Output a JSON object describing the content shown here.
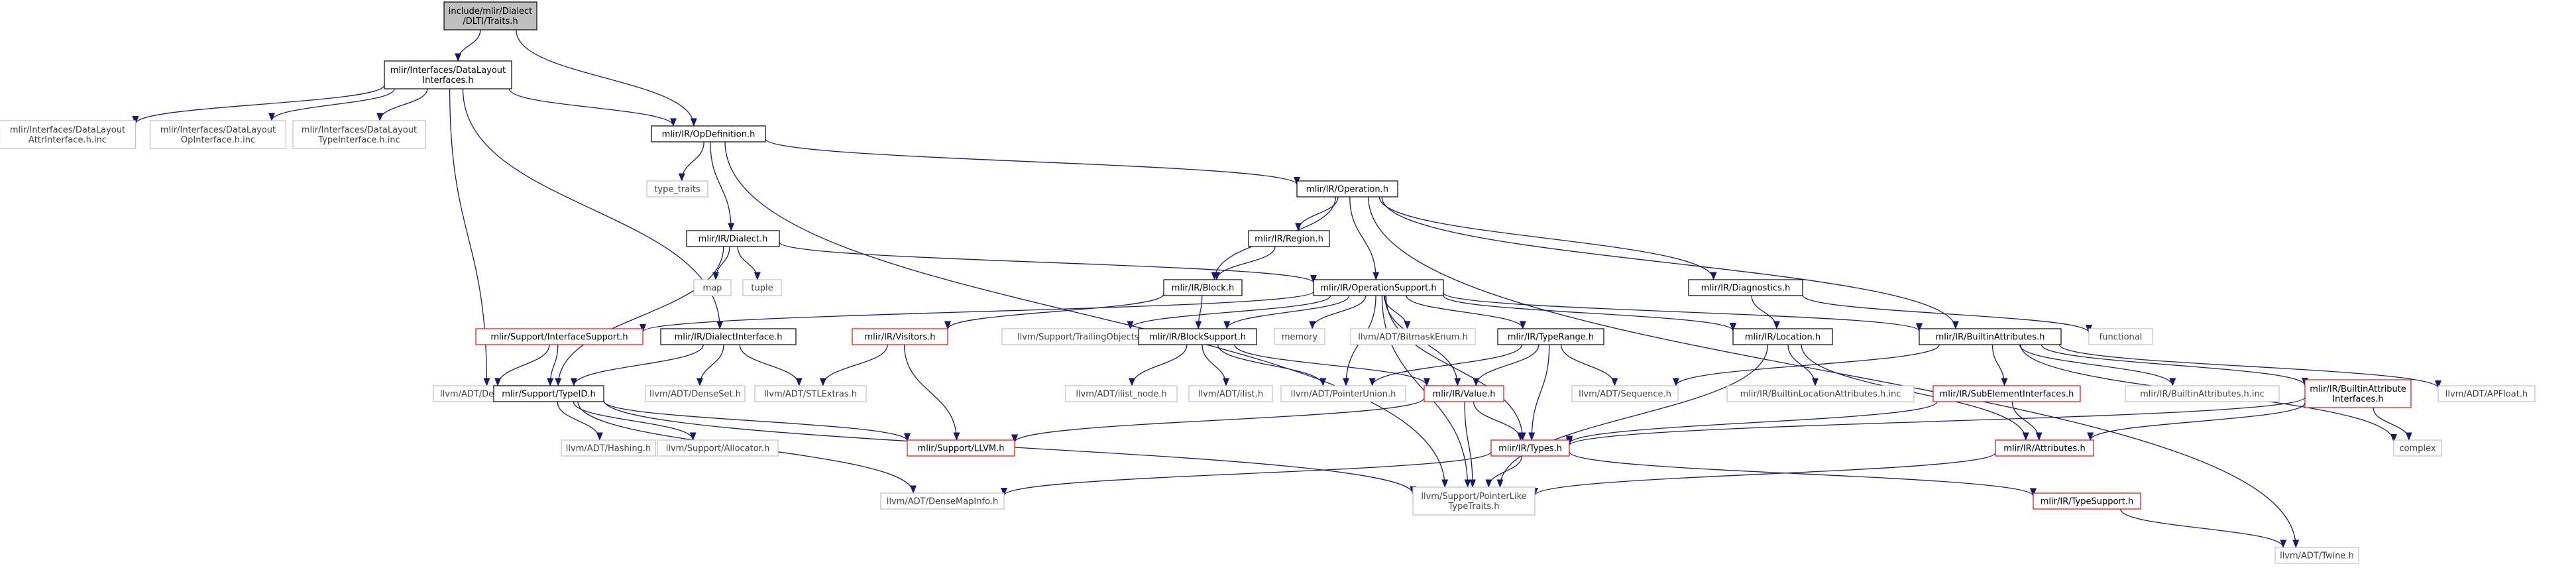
{
  "colors": {
    "background": "#ffffff",
    "edge": "#191970",
    "root_fill": "#bfbfbf",
    "border_normal": "#000000",
    "border_red": "#ff0000",
    "border_gray": "#bfbfbf",
    "text": "#000000",
    "text_gray": "#3f3f3f"
  },
  "nodes": [
    {
      "id": "n0",
      "lines": [
        "include/mlir/Dialect",
        "/DLTI/Traits.h"
      ],
      "style": "root"
    },
    {
      "id": "n1",
      "lines": [
        "mlir/Interfaces/DataLayout",
        "Interfaces.h"
      ],
      "style": "normal"
    },
    {
      "id": "n2",
      "lines": [
        "mlir/Interfaces/DataLayout",
        "AttrInterface.h.inc"
      ],
      "style": "gray"
    },
    {
      "id": "n3",
      "lines": [
        "mlir/Interfaces/DataLayout",
        "OpInterface.h.inc"
      ],
      "style": "gray"
    },
    {
      "id": "n4",
      "lines": [
        "mlir/Interfaces/DataLayout",
        "TypeInterface.h.inc"
      ],
      "style": "gray"
    },
    {
      "id": "n5",
      "lines": [
        "mlir/IR/OpDefinition.h"
      ],
      "style": "normal"
    },
    {
      "id": "n6",
      "lines": [
        "type_traits"
      ],
      "style": "gray"
    },
    {
      "id": "n7",
      "lines": [
        "mlir/IR/Operation.h"
      ],
      "style": "normal"
    },
    {
      "id": "n8",
      "lines": [
        "mlir/IR/Dialect.h"
      ],
      "style": "normal"
    },
    {
      "id": "n9",
      "lines": [
        "mlir/IR/Region.h"
      ],
      "style": "normal"
    },
    {
      "id": "n10",
      "lines": [
        "map"
      ],
      "style": "gray"
    },
    {
      "id": "n11",
      "lines": [
        "tuple"
      ],
      "style": "gray"
    },
    {
      "id": "n12",
      "lines": [
        "mlir/IR/Diagnostics.h"
      ],
      "style": "normal"
    },
    {
      "id": "n13",
      "lines": [
        "mlir/IR/Block.h"
      ],
      "style": "normal"
    },
    {
      "id": "n14",
      "lines": [
        "mlir/IR/OperationSupport.h"
      ],
      "style": "normal"
    },
    {
      "id": "n15",
      "lines": [
        "functional"
      ],
      "style": "gray"
    },
    {
      "id": "n16",
      "lines": [
        "mlir/Support/InterfaceSupport.h"
      ],
      "style": "red"
    },
    {
      "id": "n17",
      "lines": [
        "mlir/IR/DialectInterface.h"
      ],
      "style": "normal"
    },
    {
      "id": "n18",
      "lines": [
        "mlir/IR/Visitors.h"
      ],
      "style": "red"
    },
    {
      "id": "n19",
      "lines": [
        "llvm/Support/TrailingObjects.h"
      ],
      "style": "gray"
    },
    {
      "id": "n20",
      "lines": [
        "mlir/IR/BlockSupport.h"
      ],
      "style": "normal"
    },
    {
      "id": "n21",
      "lines": [
        "memory"
      ],
      "style": "gray"
    },
    {
      "id": "n22",
      "lines": [
        "llvm/ADT/BitmaskEnum.h"
      ],
      "style": "gray"
    },
    {
      "id": "n23",
      "lines": [
        "mlir/IR/TypeRange.h"
      ],
      "style": "normal"
    },
    {
      "id": "n24",
      "lines": [
        "mlir/IR/Location.h"
      ],
      "style": "normal"
    },
    {
      "id": "n25",
      "lines": [
        "mlir/IR/BuiltinAttributes.h"
      ],
      "style": "normal"
    },
    {
      "id": "n26",
      "lines": [
        "llvm/ADT/DenseMap.h"
      ],
      "style": "gray"
    },
    {
      "id": "n27",
      "lines": [
        "mlir/Support/TypeID.h"
      ],
      "style": "normal"
    },
    {
      "id": "n28",
      "lines": [
        "llvm/ADT/DenseSet.h"
      ],
      "style": "gray"
    },
    {
      "id": "n29",
      "lines": [
        "llvm/ADT/STLExtras.h"
      ],
      "style": "gray"
    },
    {
      "id": "n30",
      "lines": [
        "llvm/ADT/ilist_node.h"
      ],
      "style": "gray"
    },
    {
      "id": "n31",
      "lines": [
        "llvm/ADT/ilist.h"
      ],
      "style": "gray"
    },
    {
      "id": "n32",
      "lines": [
        "llvm/ADT/PointerUnion.h"
      ],
      "style": "gray"
    },
    {
      "id": "n33",
      "lines": [
        "mlir/IR/Value.h"
      ],
      "style": "red"
    },
    {
      "id": "n34",
      "lines": [
        "llvm/ADT/Sequence.h"
      ],
      "style": "gray"
    },
    {
      "id": "n35",
      "lines": [
        "mlir/IR/BuiltinLocationAttributes.h.inc"
      ],
      "style": "gray"
    },
    {
      "id": "n36",
      "lines": [
        "mlir/IR/SubElementInterfaces.h"
      ],
      "style": "red"
    },
    {
      "id": "n37",
      "lines": [
        "mlir/IR/BuiltinAttributes.h.inc"
      ],
      "style": "gray"
    },
    {
      "id": "n38",
      "lines": [
        "mlir/IR/BuiltinAttribute",
        "Interfaces.h"
      ],
      "style": "red"
    },
    {
      "id": "n39",
      "lines": [
        "llvm/ADT/APFloat.h"
      ],
      "style": "gray"
    },
    {
      "id": "n40",
      "lines": [
        "llvm/ADT/Hashing.h"
      ],
      "style": "gray"
    },
    {
      "id": "n41",
      "lines": [
        "llvm/Support/Allocator.h"
      ],
      "style": "gray"
    },
    {
      "id": "n42",
      "lines": [
        "mlir/Support/LLVM.h"
      ],
      "style": "red"
    },
    {
      "id": "n43",
      "lines": [
        "mlir/IR/Types.h"
      ],
      "style": "red"
    },
    {
      "id": "n44",
      "lines": [
        "mlir/IR/Attributes.h"
      ],
      "style": "red"
    },
    {
      "id": "n45",
      "lines": [
        "complex"
      ],
      "style": "gray"
    },
    {
      "id": "n46",
      "lines": [
        "llvm/ADT/DenseMapInfo.h"
      ],
      "style": "gray"
    },
    {
      "id": "n47",
      "lines": [
        "llvm/Support/PointerLike",
        "TypeTraits.h"
      ],
      "style": "gray"
    },
    {
      "id": "n48",
      "lines": [
        "mlir/IR/TypeSupport.h"
      ],
      "style": "red"
    },
    {
      "id": "n49",
      "lines": [
        "llvm/ADT/Twine.h"
      ],
      "style": "gray"
    }
  ],
  "edges": [
    [
      "n0",
      "n1"
    ],
    [
      "n0",
      "n5"
    ],
    [
      "n1",
      "n2"
    ],
    [
      "n1",
      "n3"
    ],
    [
      "n1",
      "n4"
    ],
    [
      "n1",
      "n5"
    ],
    [
      "n1",
      "n26"
    ],
    [
      "n1",
      "n17"
    ],
    [
      "n5",
      "n6"
    ],
    [
      "n5",
      "n7"
    ],
    [
      "n5",
      "n8"
    ],
    [
      "n5",
      "n47"
    ],
    [
      "n7",
      "n9"
    ],
    [
      "n7",
      "n13"
    ],
    [
      "n7",
      "n14"
    ],
    [
      "n7",
      "n12"
    ],
    [
      "n7",
      "n25"
    ],
    [
      "n7",
      "n49"
    ],
    [
      "n8",
      "n10"
    ],
    [
      "n8",
      "n11"
    ],
    [
      "n8",
      "n14"
    ],
    [
      "n8",
      "n27"
    ],
    [
      "n9",
      "n13"
    ],
    [
      "n12",
      "n24"
    ],
    [
      "n12",
      "n15"
    ],
    [
      "n13",
      "n18"
    ],
    [
      "n13",
      "n20"
    ],
    [
      "n14",
      "n16"
    ],
    [
      "n14",
      "n19"
    ],
    [
      "n14",
      "n20"
    ],
    [
      "n14",
      "n21"
    ],
    [
      "n14",
      "n22"
    ],
    [
      "n14",
      "n23"
    ],
    [
      "n14",
      "n24"
    ],
    [
      "n14",
      "n25"
    ],
    [
      "n14",
      "n32"
    ],
    [
      "n14",
      "n33"
    ],
    [
      "n14",
      "n43"
    ],
    [
      "n14",
      "n47"
    ],
    [
      "n16",
      "n26"
    ],
    [
      "n16",
      "n27"
    ],
    [
      "n17",
      "n27"
    ],
    [
      "n17",
      "n28"
    ],
    [
      "n17",
      "n29"
    ],
    [
      "n18",
      "n29"
    ],
    [
      "n18",
      "n42"
    ],
    [
      "n20",
      "n30"
    ],
    [
      "n20",
      "n31"
    ],
    [
      "n20",
      "n32"
    ],
    [
      "n20",
      "n33"
    ],
    [
      "n23",
      "n32"
    ],
    [
      "n23",
      "n33"
    ],
    [
      "n23",
      "n34"
    ],
    [
      "n23",
      "n43"
    ],
    [
      "n24",
      "n35"
    ],
    [
      "n24",
      "n44"
    ],
    [
      "n24",
      "n47"
    ],
    [
      "n25",
      "n34"
    ],
    [
      "n25",
      "n36"
    ],
    [
      "n25",
      "n37"
    ],
    [
      "n25",
      "n38"
    ],
    [
      "n25",
      "n39"
    ],
    [
      "n25",
      "n45"
    ],
    [
      "n27",
      "n40"
    ],
    [
      "n27",
      "n41"
    ],
    [
      "n27",
      "n42"
    ],
    [
      "n27",
      "n46"
    ],
    [
      "n27",
      "n47"
    ],
    [
      "n33",
      "n42"
    ],
    [
      "n33",
      "n43"
    ],
    [
      "n33",
      "n47"
    ],
    [
      "n36",
      "n43"
    ],
    [
      "n36",
      "n44"
    ],
    [
      "n38",
      "n43"
    ],
    [
      "n38",
      "n44"
    ],
    [
      "n38",
      "n45"
    ],
    [
      "n43",
      "n46"
    ],
    [
      "n43",
      "n47"
    ],
    [
      "n43",
      "n48"
    ],
    [
      "n44",
      "n47"
    ],
    [
      "n48",
      "n49"
    ]
  ]
}
